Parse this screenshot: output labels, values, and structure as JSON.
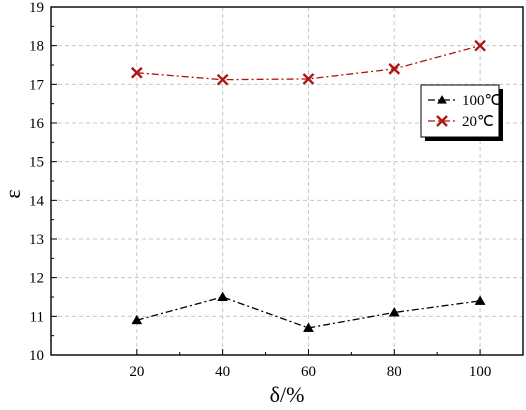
{
  "chart_data": {
    "type": "line",
    "title": "",
    "xlabel": "δ/%",
    "ylabel": "ε",
    "x": [
      20,
      40,
      60,
      80,
      100
    ],
    "x_ticks": [
      "20",
      "40",
      "60",
      "80",
      "100"
    ],
    "xlim": [
      0,
      110
    ],
    "y_ticks": [
      "10",
      "11",
      "12",
      "13",
      "14",
      "15",
      "16",
      "17",
      "18",
      "19"
    ],
    "ylim": [
      10,
      19
    ],
    "grid": true,
    "legend_position": "right",
    "series": [
      {
        "name": "100℃",
        "values": [
          10.9,
          11.5,
          10.7,
          11.1,
          11.4
        ],
        "color": "#000000",
        "marker": "triangle",
        "line_style": "dash-dot"
      },
      {
        "name": "20℃",
        "values": [
          17.3,
          17.12,
          17.14,
          17.4,
          18.0
        ],
        "color": "#b01515",
        "marker": "x",
        "line_style": "dash-dot"
      }
    ]
  }
}
